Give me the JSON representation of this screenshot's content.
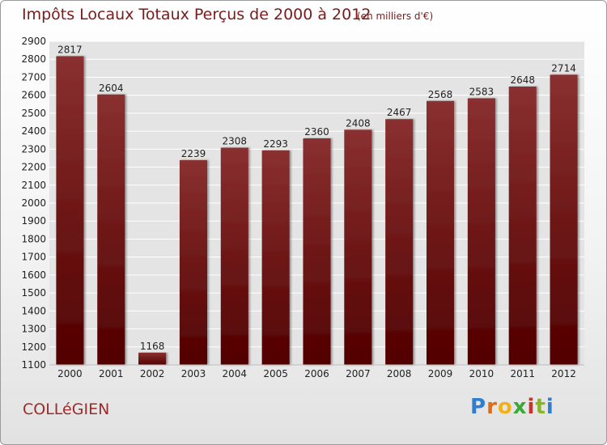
{
  "title": "Impôts Locaux Totaux Perçus de 2000 à 2012",
  "subtitle": "(en milliers d'€)",
  "commune": "COLLéGIEN",
  "brand": {
    "letters": [
      "P",
      "r",
      "o",
      "x",
      "i",
      "t",
      "i"
    ],
    "colors": [
      "#2f7fd1",
      "#e46a16",
      "#f2b11a",
      "#3aa935",
      "#c8332b",
      "#8ab32e",
      "#2f7fd1"
    ]
  },
  "colors": {
    "bar_top": "#8a3030",
    "bar_bottom": "#520000",
    "grid": "#ffffff",
    "plot_bg": "#e4e4e4",
    "text": "#222222"
  },
  "chart_data": {
    "type": "bar",
    "categories": [
      "2000",
      "2001",
      "2002",
      "2003",
      "2004",
      "2005",
      "2006",
      "2007",
      "2008",
      "2009",
      "2010",
      "2011",
      "2012"
    ],
    "values": [
      2817,
      2604,
      1168,
      2239,
      2308,
      2293,
      2360,
      2408,
      2467,
      2568,
      2583,
      2648,
      2714
    ],
    "title": "Impôts Locaux Totaux Perçus de 2000 à 2012",
    "xlabel": "",
    "ylabel": "",
    "ylim": [
      1100,
      2900
    ],
    "yticks": [
      1100,
      1200,
      1300,
      1400,
      1500,
      1600,
      1700,
      1800,
      1900,
      2000,
      2100,
      2200,
      2300,
      2400,
      2500,
      2600,
      2700,
      2800,
      2900
    ],
    "grid": true,
    "data_labels": true
  }
}
